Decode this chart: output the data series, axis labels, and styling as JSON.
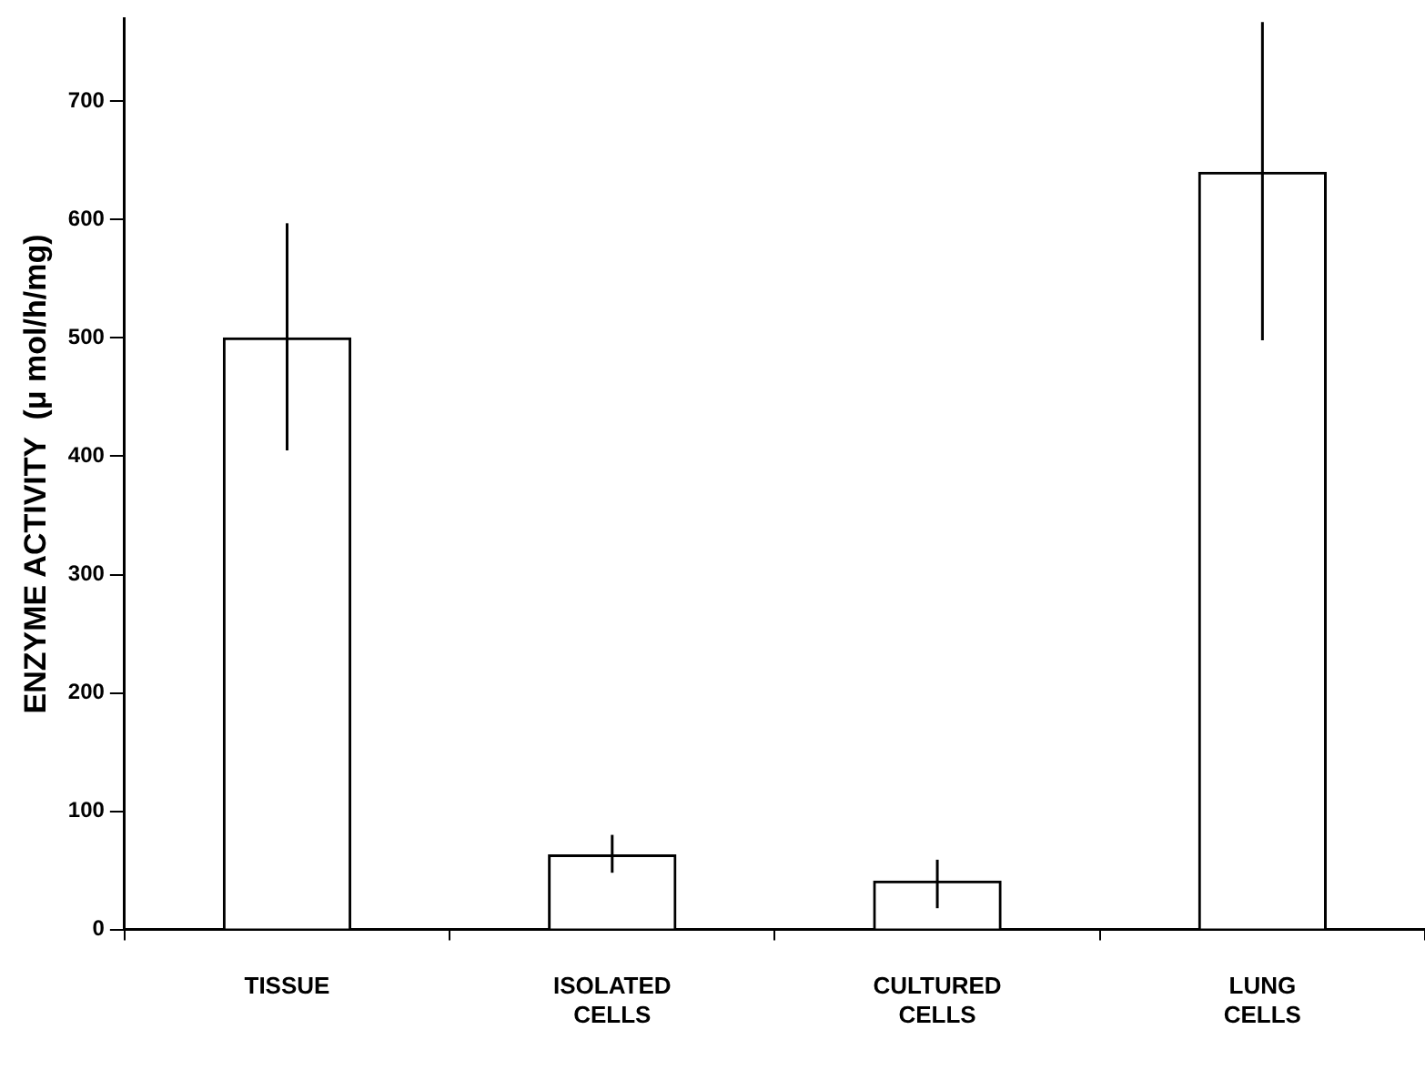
{
  "chart_data": {
    "type": "bar",
    "ylabel": "ENZYME ACTIVITY  (μ mol/h/mg)",
    "categories": [
      "TISSUE",
      "ISOLATED CELLS",
      "CULTURED CELLS",
      "LUNG CELLS"
    ],
    "values": [
      500,
      63,
      41,
      640
    ],
    "errors": [
      [
        405,
        597
      ],
      [
        48,
        80
      ],
      [
        18,
        59
      ],
      [
        498,
        767
      ]
    ],
    "color": "#ffffff",
    "ylim": [
      0,
      770
    ],
    "yticks": [
      0,
      100,
      200,
      300,
      400,
      500,
      600,
      700
    ],
    "grid": false,
    "legend": false
  }
}
